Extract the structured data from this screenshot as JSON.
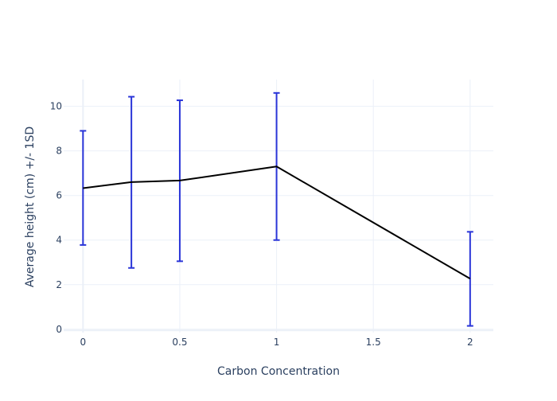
{
  "chart_data": {
    "type": "line",
    "title": "",
    "xlabel": "Carbon Concentration",
    "ylabel": "Average height (cm) +/- 1SD",
    "xlim": [
      -0.1,
      2.12
    ],
    "ylim": [
      -0.15,
      11.2
    ],
    "x_ticks": [
      0,
      0.5,
      1,
      1.5,
      2
    ],
    "x_tick_labels": [
      "0",
      "0.5",
      "1",
      "1.5",
      "2"
    ],
    "y_ticks": [
      0,
      2,
      4,
      6,
      8,
      10
    ],
    "y_tick_labels": [
      "0",
      "2",
      "4",
      "6",
      "8",
      "10"
    ],
    "grid": true,
    "legend": "none",
    "series": [
      {
        "x": [
          0,
          0.25,
          0.5,
          1,
          2
        ],
        "y": [
          6.33,
          6.6,
          6.67,
          7.3,
          2.27
        ],
        "error_minus": [
          2.55,
          3.85,
          3.62,
          3.3,
          2.12
        ],
        "error_plus": [
          2.57,
          3.83,
          3.6,
          3.3,
          2.1
        ],
        "line_color": "#000000",
        "error_color": "#2a35d8"
      }
    ]
  }
}
